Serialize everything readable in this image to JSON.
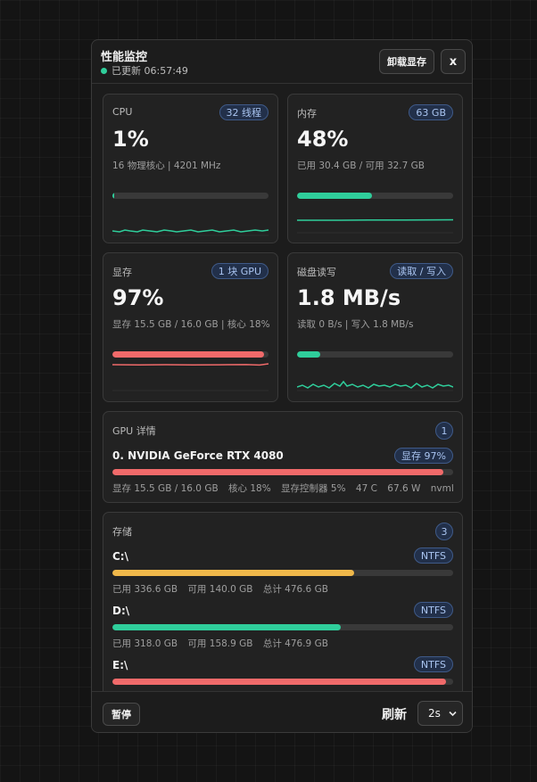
{
  "header": {
    "title": "性能监控",
    "updated_label": "已更新 06:57:49",
    "unload_button": "卸载显存",
    "close_button": "x"
  },
  "cpu": {
    "label": "CPU",
    "badge": "32 线程",
    "value": "1%",
    "sub": "16 物理核心 | 4201 MHz",
    "usage_fraction": 0.01,
    "color": "#2fce9b"
  },
  "memory": {
    "label": "内存",
    "badge": "63 GB",
    "value": "48%",
    "sub": "已用 30.4 GB / 可用 32.7 GB",
    "usage_fraction": 0.48,
    "color": "#2fce9b"
  },
  "vram": {
    "label": "显存",
    "badge": "1 块 GPU",
    "value": "97%",
    "sub": "显存 15.5 GB / 16.0 GB | 核心 18%",
    "usage_fraction": 0.97,
    "color": "#f06a6a"
  },
  "disk_io": {
    "label": "磁盘读写",
    "badge": "读取 / 写入",
    "value": "1.8 MB/s",
    "sub": "读取 0 B/s | 写入 1.8 MB/s",
    "usage_fraction": 0.15,
    "color": "#2fce9b"
  },
  "gpu_details": {
    "label": "GPU 详情",
    "count": "1",
    "name": "0. NVIDIA GeForce RTX 4080",
    "badge": "显存 97%",
    "usage_fraction": 0.97,
    "color": "#f06a6a",
    "meta": [
      "显存 15.5 GB / 16.0 GB",
      "核心 18%",
      "显存控制器 5%",
      "47 C",
      "67.6 W",
      "nvml"
    ]
  },
  "storage": {
    "label": "存储",
    "count": "3",
    "drives": [
      {
        "name": "C:\\",
        "fs": "NTFS",
        "used": "已用 336.6 GB",
        "free": "可用 140.0 GB",
        "total": "总计 476.6 GB",
        "usage_fraction": 0.71,
        "color": "#f0b84a"
      },
      {
        "name": "D:\\",
        "fs": "NTFS",
        "used": "已用 318.0 GB",
        "free": "可用 158.9 GB",
        "total": "总计 476.9 GB",
        "usage_fraction": 0.67,
        "color": "#2fce9b"
      },
      {
        "name": "E:\\",
        "fs": "NTFS",
        "used": "",
        "free": "",
        "total": "",
        "usage_fraction": 0.98,
        "color": "#f06a6a"
      }
    ]
  },
  "footer": {
    "pause_button": "暂停",
    "refresh_label": "刷新",
    "refresh_value": "2s"
  }
}
